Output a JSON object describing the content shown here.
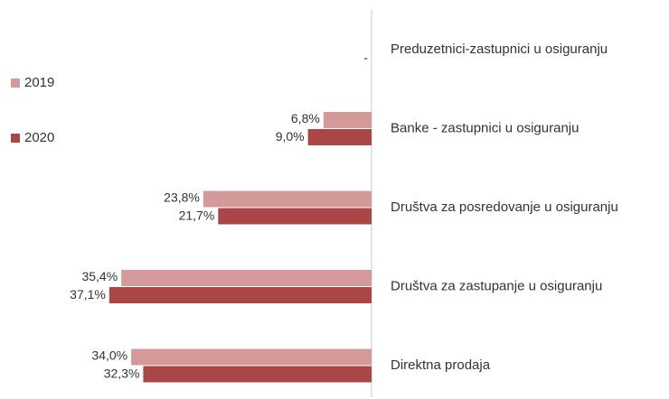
{
  "chart_data": {
    "type": "bar",
    "orientation": "horizontal",
    "categories": [
      "Preduzetnici-zastupnici u osiguranju",
      "Banke - zastupnici u osiguranju",
      "Društva za posredovanje u osiguranju",
      "Društva za zastupanje u osiguranju",
      "Direktna prodaja"
    ],
    "series": [
      {
        "name": "2019",
        "color": "#d49a9a",
        "values": [
          0,
          6.8,
          23.8,
          35.4,
          34.0
        ],
        "value_labels": [
          null,
          "6,8%",
          "23,8%",
          "35,4%",
          "34,0%"
        ]
      },
      {
        "name": "2020",
        "color": "#ab4646",
        "values": [
          0,
          9.0,
          21.7,
          37.1,
          32.3
        ],
        "value_labels": [
          "-",
          "9,0%",
          "21,7%",
          "37,1%",
          "32,3%"
        ]
      }
    ]
  }
}
